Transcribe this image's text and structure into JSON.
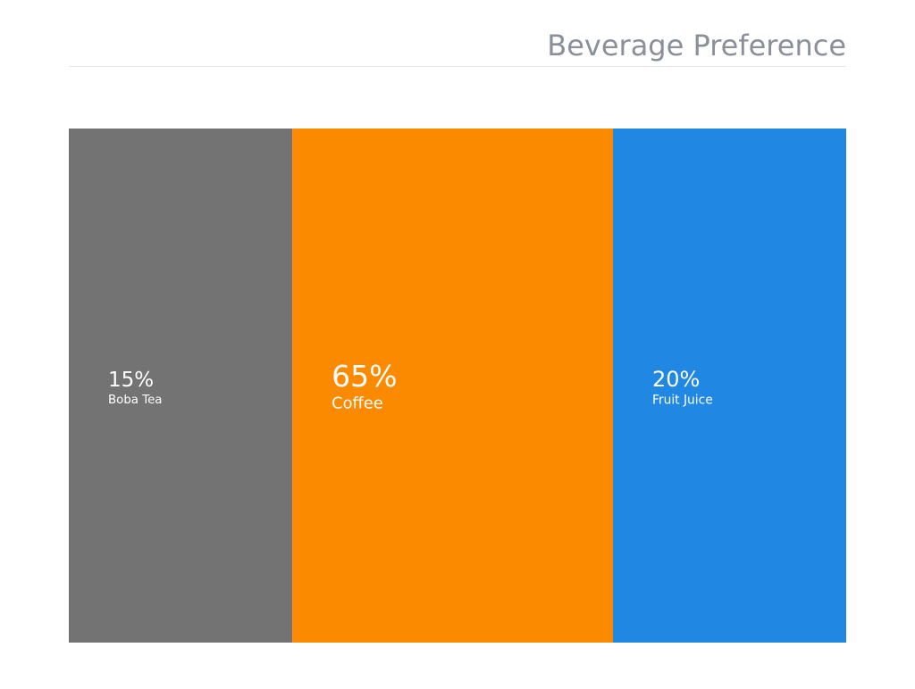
{
  "chart_data": {
    "type": "proportion_bar",
    "title": "Beverage Preference",
    "categories": [
      "Boba Tea",
      "Coffee",
      "Fruit Juice"
    ],
    "values": [
      15,
      65,
      20
    ],
    "value_labels": [
      "15%",
      "65%",
      "20%"
    ],
    "colors": [
      "#737373",
      "#fb8a00",
      "#2087e3"
    ]
  }
}
